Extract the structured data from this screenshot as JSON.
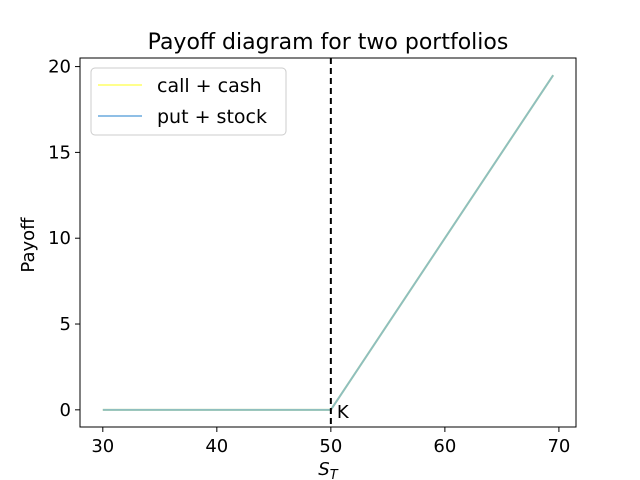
{
  "chart_data": {
    "type": "line",
    "title": "Payoff diagram for two portfolios",
    "xlabel_main": "S",
    "xlabel_sub": "T",
    "ylabel": "Payoff",
    "xlim": [
      28,
      71.5
    ],
    "ylim": [
      -1,
      20.5
    ],
    "xticks": [
      30,
      40,
      50,
      60,
      70
    ],
    "yticks": [
      0,
      5,
      10,
      15,
      20
    ],
    "grid": false,
    "legend_position": "top-left",
    "series": [
      {
        "name": "call + cash",
        "color": "#ffff66",
        "x": [
          30,
          50,
          69.5
        ],
        "y": [
          0,
          0,
          19.5
        ]
      },
      {
        "name": "put + stock",
        "color": "#6aaadd",
        "x": [
          30,
          50,
          69.5
        ],
        "y": [
          0,
          0,
          19.5
        ]
      }
    ],
    "overlap_color": "#8cbf8c",
    "vline": {
      "x": 50,
      "label": "K",
      "style": "dashed",
      "color": "#000000"
    }
  }
}
